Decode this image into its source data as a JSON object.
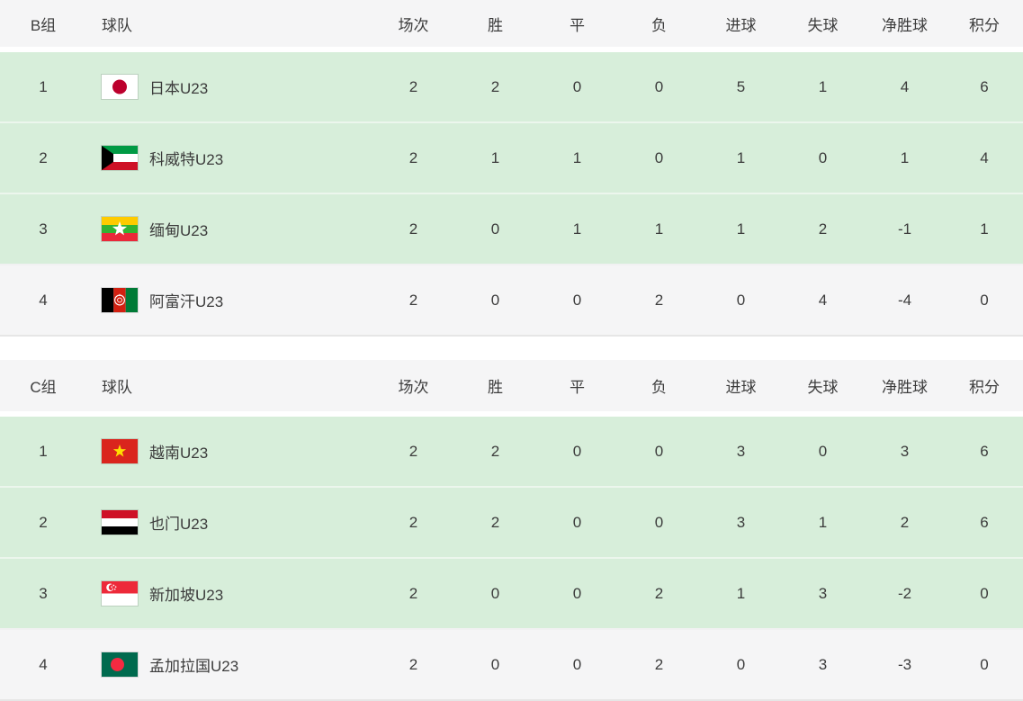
{
  "colors": {
    "page_bg": "#ffffff",
    "header_bg": "#f5f5f6",
    "highlight_row_bg": "#d7eeda",
    "plain_row_bg": "#f5f5f6",
    "row_divider": "#ecf6ed",
    "table_bottom_border": "#e6e6e6",
    "text": "#3c3c3c"
  },
  "columns": {
    "team": "球队",
    "played": "场次",
    "win": "胜",
    "draw": "平",
    "loss": "负",
    "goals_for": "进球",
    "goals_against": "失球",
    "goal_diff": "净胜球",
    "points": "积分"
  },
  "groups": [
    {
      "label": "B组",
      "rows": [
        {
          "rank": "1",
          "flag": "flag-japan",
          "team": "日本U23",
          "played": "2",
          "win": "2",
          "draw": "0",
          "loss": "0",
          "goals_for": "5",
          "goals_against": "1",
          "goal_diff": "4",
          "points": "6",
          "highlighted": true
        },
        {
          "rank": "2",
          "flag": "flag-kuwait",
          "team": "科威特U23",
          "played": "2",
          "win": "1",
          "draw": "1",
          "loss": "0",
          "goals_for": "1",
          "goals_against": "0",
          "goal_diff": "1",
          "points": "4",
          "highlighted": true
        },
        {
          "rank": "3",
          "flag": "flag-myanmar",
          "team": "缅甸U23",
          "played": "2",
          "win": "0",
          "draw": "1",
          "loss": "1",
          "goals_for": "1",
          "goals_against": "2",
          "goal_diff": "-1",
          "points": "1",
          "highlighted": true
        },
        {
          "rank": "4",
          "flag": "flag-afghanistan",
          "team": "阿富汗U23",
          "played": "2",
          "win": "0",
          "draw": "0",
          "loss": "2",
          "goals_for": "0",
          "goals_against": "4",
          "goal_diff": "-4",
          "points": "0",
          "highlighted": false
        }
      ]
    },
    {
      "label": "C组",
      "rows": [
        {
          "rank": "1",
          "flag": "flag-vietnam",
          "team": "越南U23",
          "played": "2",
          "win": "2",
          "draw": "0",
          "loss": "0",
          "goals_for": "3",
          "goals_against": "0",
          "goal_diff": "3",
          "points": "6",
          "highlighted": true
        },
        {
          "rank": "2",
          "flag": "flag-yemen",
          "team": "也门U23",
          "played": "2",
          "win": "2",
          "draw": "0",
          "loss": "0",
          "goals_for": "3",
          "goals_against": "1",
          "goal_diff": "2",
          "points": "6",
          "highlighted": true
        },
        {
          "rank": "3",
          "flag": "flag-singapore",
          "team": "新加坡U23",
          "played": "2",
          "win": "0",
          "draw": "0",
          "loss": "2",
          "goals_for": "1",
          "goals_against": "3",
          "goal_diff": "-2",
          "points": "0",
          "highlighted": true
        },
        {
          "rank": "4",
          "flag": "flag-bangladesh",
          "team": "孟加拉国U23",
          "played": "2",
          "win": "0",
          "draw": "0",
          "loss": "2",
          "goals_for": "0",
          "goals_against": "3",
          "goal_diff": "-3",
          "points": "0",
          "highlighted": false
        }
      ]
    }
  ]
}
